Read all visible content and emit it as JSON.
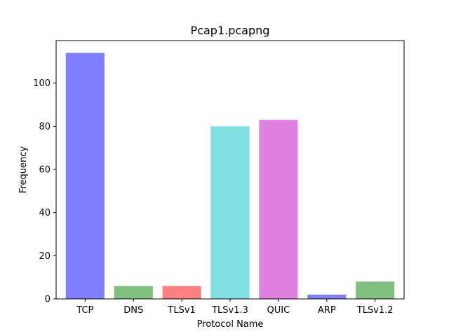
{
  "chart_data": {
    "type": "bar",
    "title": "Pcap1.pcapng",
    "xlabel": "Protocol Name",
    "ylabel": "Frequency",
    "categories": [
      "TCP",
      "DNS",
      "TLSv1",
      "TLSv1.3",
      "QUIC",
      "ARP",
      "TLSv1.2"
    ],
    "values": [
      114,
      6,
      6,
      80,
      83,
      2,
      8
    ],
    "bar_colors": [
      "#8080ff",
      "#80bf80",
      "#ff8080",
      "#80e0e0",
      "#e080e0",
      "#8080ff",
      "#80bf80"
    ],
    "ylim": [
      0,
      119.7
    ],
    "yticks": [
      0,
      20,
      40,
      60,
      80,
      100
    ],
    "grid": false,
    "legend": "none"
  }
}
